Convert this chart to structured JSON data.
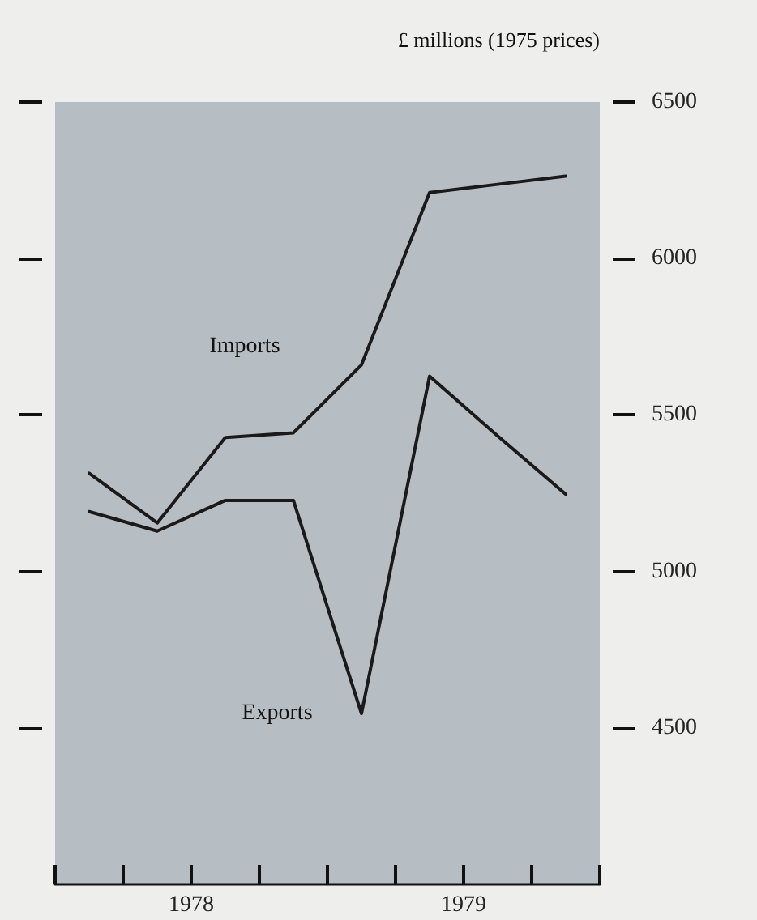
{
  "chart_data": {
    "type": "line",
    "ylabel": "£ millions (1975 prices)",
    "x": [
      1978.125,
      1978.375,
      1978.625,
      1978.875,
      1979.125,
      1979.375,
      1979.625,
      1979.875
    ],
    "series": [
      {
        "name": "Imports",
        "color": "#1a1a1a",
        "values": [
          5314,
          5155,
          5428,
          5443,
          5660,
          6211,
          6237,
          6263
        ]
      },
      {
        "name": "Exports",
        "color": "#1a1a1a",
        "values": [
          5191,
          5129,
          5227,
          5227,
          4546,
          5624,
          5433,
          5247
        ]
      }
    ],
    "xlim": [
      1978,
      1980
    ],
    "xticks": [
      {
        "value": 1978,
        "label": null
      },
      {
        "value": 1978.25,
        "label": null
      },
      {
        "value": 1978.5,
        "label": "1978"
      },
      {
        "value": 1978.75,
        "label": null
      },
      {
        "value": 1979,
        "label": null
      },
      {
        "value": 1979.25,
        "label": null
      },
      {
        "value": 1979.5,
        "label": "1979"
      },
      {
        "value": 1979.75,
        "label": null
      },
      {
        "value": 1980,
        "label": null
      }
    ],
    "ylim": [
      4000,
      6500
    ],
    "yticks": [
      4500,
      5000,
      5500,
      6000,
      6500
    ],
    "grid": false,
    "legend": false,
    "marker": "none",
    "line_style": "solid"
  }
}
